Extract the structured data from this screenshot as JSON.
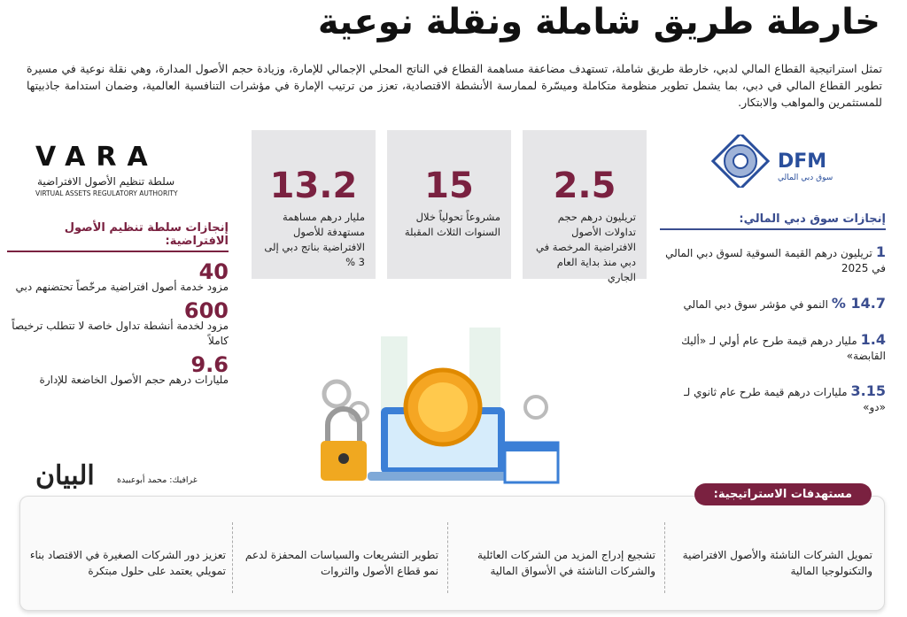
{
  "header": {
    "title": "خارطة طريق شاملة ونقلة نوعية",
    "intro": "تمثل استراتيجية القطاع المالي لدبي، خارطة طريق شاملة، تستهدف مضاعفة مساهمة القطاع في الناتج المحلي الإجمالي للإمارة، وزيادة حجم الأصول المدارة، وهي نقلة نوعية في مسيرة تطوير القطاع المالي في دبي، بما يشمل تطوير منظومة متكاملة وميسّرة لممارسة الأنشطة الاقتصادية، تعزز من ترتيب الإمارة في مؤشرات التنافسية العالمية، وضمان استدامة جاذبيتها للمستثمرين والمواهب والابتكار."
  },
  "stats": [
    {
      "value": "2.5",
      "text": "تريليون درهم حجم تداولات الأصول الافتراضية المرخصة في دبي منذ بداية العام الجاري"
    },
    {
      "value": "15",
      "text": "مشروعاً تحولياً خلال السنوات الثلاث المقبلة"
    },
    {
      "value": "13.2",
      "text": "مليار درهم مساهمة مستهدفة للأصول الافتراضية بناتج دبي إلى 3 %"
    }
  ],
  "vara": {
    "logo": "VARA",
    "name_ar": "سلطة تنظيم الأصول الافتراضية",
    "name_en": "VIRTUAL ASSETS REGULATORY AUTHORITY",
    "section_title": "إنجازات سلطة تنظيم الأصول الافتراضية:",
    "items": [
      {
        "value": "40",
        "text": "مزود خدمة أصول افتراضية مرخّصاً تحتضنهم دبي"
      },
      {
        "value": "600",
        "text": "مزود لخدمة أنشطة تداول خاصة لا تتطلب ترخيصاً كاملاً"
      },
      {
        "value": "9.6",
        "text": "مليارات درهم حجم الأصول الخاضعة للإدارة"
      }
    ]
  },
  "dfm": {
    "logo": "DFM",
    "name_ar": "سوق دبي المالي",
    "section_title": "إنجازات سوق دبي المالي:",
    "items": [
      {
        "value": "1",
        "text": "تريليون درهم القيمة السوقية لسوق دبي المالي في 2025"
      },
      {
        "value": "14.7 %",
        "text": "النمو في مؤشر سوق دبي المالي"
      },
      {
        "value": "1.4",
        "text": "مليار درهم قيمة طرح عام أولي لـ «أليك القابضة»"
      },
      {
        "value": "3.15",
        "text": "مليارات درهم قيمة طرح عام ثانوي لـ «دو»"
      }
    ]
  },
  "credit": "غرافيك: محمد أبوعبيدة",
  "brand": "البيان",
  "strategy": {
    "title": "مستهدفات الاستراتيجية:",
    "items": [
      "تمويل الشركات الناشئة والأصول الافتراضية والتكنولوجيا المالية",
      "تشجيع إدراج المزيد من الشركات العائلية والشركات الناشئة في الأسواق المالية",
      "تطوير التشريعات والسياسات المحفزة لدعم نمو قطاع الأصول والثروات",
      "تعزيز دور الشركات الصغيرة في الاقتصاد بناء تمويلي يعتمد على حلول مبتكرة"
    ]
  }
}
